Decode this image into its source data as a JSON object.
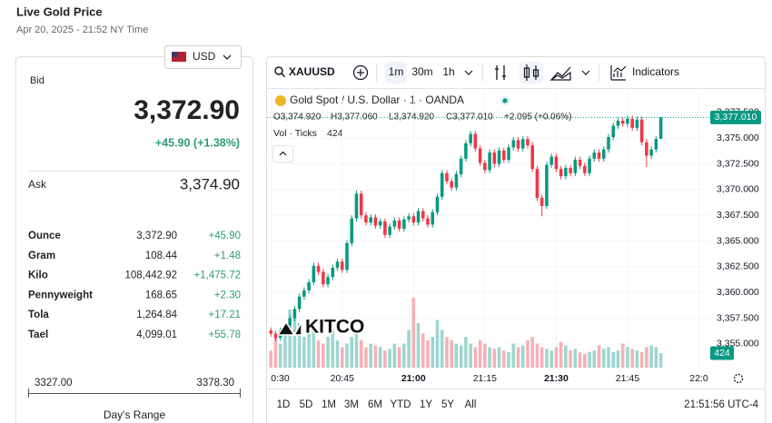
{
  "header": {
    "title": "Live Gold Price",
    "timestamp": "Apr 20, 2025 - 21:52 NY Time",
    "currency": "USD"
  },
  "price_card": {
    "bid_label": "Bid",
    "bid": "3,372.90",
    "change": "+45.90 (+1.38%)",
    "ask_label": "Ask",
    "ask": "3,374.90",
    "rows": [
      [
        "Ounce",
        "3,372.90",
        "+45.90"
      ],
      [
        "Gram",
        "108.44",
        "+1.48"
      ],
      [
        "Kilo",
        "108,442.92",
        "+1,475.72"
      ],
      [
        "Pennyweight",
        "168.65",
        "+2.30"
      ],
      [
        "Tola",
        "1,264.84",
        "+17.21"
      ],
      [
        "Tael",
        "4,099.01",
        "+55.78"
      ]
    ],
    "range_low": "3327.00",
    "range_high": "3378.30",
    "range_label": "Day's Range"
  },
  "toolbar": {
    "symbol": "XAUUSD",
    "intervals": [
      "1m",
      "30m",
      "1h"
    ],
    "indicators": "Indicators"
  },
  "chart_data": {
    "type": "candlestick",
    "title": "Gold Spot / U.S. Dollar · 1 · OANDA",
    "ohlc_legend": [
      "O3,374.920",
      "H3,377.060",
      "L3,374.920",
      "C3,377.010",
      "+2.095 (+0.06%)"
    ],
    "volume_title": "Vol · Ticks",
    "volume_label": "424",
    "close_label": "3,377.010",
    "watermark": "KITCO",
    "up_color": "#089981",
    "down_color": "#f23645",
    "volume_up_color": "#9dd6ce",
    "volume_down_color": "#f7b0b6",
    "xlim": [
      -1,
      92.2
    ],
    "xticks": [
      {
        "value": 0,
        "label": "0:30"
      },
      {
        "value": 15,
        "label": "20:45"
      },
      {
        "value": 30,
        "label": "21:00"
      },
      {
        "value": 45,
        "label": "21:15"
      },
      {
        "value": 60,
        "label": "21:30"
      },
      {
        "value": 75,
        "label": "21:45"
      },
      {
        "value": 90,
        "label": "22:0"
      }
    ],
    "ylim": [
      3352.7,
      3379.6
    ],
    "yticks": [
      {
        "value": 3377.5,
        "label": "3,377.500"
      },
      {
        "value": 3375,
        "label": "3,375.000"
      },
      {
        "value": 3372.5,
        "label": "3,372.500"
      },
      {
        "value": 3370,
        "label": "3,370.000"
      },
      {
        "value": 3367.5,
        "label": "3,367.500"
      },
      {
        "value": 3365,
        "label": "3,365.000"
      },
      {
        "value": 3362.5,
        "label": "3,362.500"
      },
      {
        "value": 3360,
        "label": "3,360.000"
      },
      {
        "value": 3357.5,
        "label": "3,357.500"
      },
      {
        "value": 3355,
        "label": "3,355.000"
      }
    ],
    "volume_ylim": [
      0,
      3000
    ],
    "candles": [
      [
        3356.3,
        3356.6,
        3355.7,
        3356.0
      ],
      [
        3356.0,
        3356.3,
        3355.3,
        3355.6
      ],
      [
        3355.6,
        3356.6,
        3355.3,
        3356.3
      ],
      [
        3356.3,
        3357.1,
        3356.0,
        3356.8
      ],
      [
        3356.8,
        3357.8,
        3356.5,
        3357.5
      ],
      [
        3357.5,
        3358.7,
        3357.2,
        3358.4
      ],
      [
        3358.4,
        3359.9,
        3358.1,
        3359.6
      ],
      [
        3359.6,
        3360.5,
        3359.3,
        3360.2
      ],
      [
        3360.2,
        3361.3,
        3359.9,
        3361.0
      ],
      [
        3361.0,
        3362.9,
        3360.7,
        3362.6
      ],
      [
        3362.6,
        3362.9,
        3361.7,
        3362.0
      ],
      [
        3362.0,
        3362.3,
        3360.5,
        3360.8
      ],
      [
        3360.8,
        3361.8,
        3360.5,
        3361.5
      ],
      [
        3361.5,
        3362.7,
        3361.2,
        3362.4
      ],
      [
        3362.4,
        3363.3,
        3362.1,
        3363.0
      ],
      [
        3363.0,
        3363.3,
        3361.9,
        3362.2
      ],
      [
        3362.2,
        3365.1,
        3361.9,
        3364.8
      ],
      [
        3364.8,
        3367.5,
        3364.5,
        3367.2
      ],
      [
        3367.2,
        3369.9,
        3366.9,
        3369.6
      ],
      [
        3369.6,
        3369.9,
        3367.2,
        3367.5
      ],
      [
        3367.5,
        3367.8,
        3366.5,
        3366.8
      ],
      [
        3366.8,
        3367.6,
        3366.5,
        3367.3
      ],
      [
        3367.3,
        3367.6,
        3366.2,
        3366.5
      ],
      [
        3366.5,
        3367.2,
        3366.2,
        3366.9
      ],
      [
        3366.9,
        3367.2,
        3365.3,
        3365.6
      ],
      [
        3365.6,
        3366.7,
        3365.3,
        3366.4
      ],
      [
        3366.4,
        3367.3,
        3366.1,
        3367.0
      ],
      [
        3367.0,
        3367.3,
        3365.9,
        3366.2
      ],
      [
        3366.2,
        3367.4,
        3365.9,
        3367.1
      ],
      [
        3367.1,
        3367.7,
        3366.8,
        3367.4
      ],
      [
        3367.4,
        3367.7,
        3366.5,
        3366.8
      ],
      [
        3366.8,
        3368.2,
        3366.5,
        3367.9
      ],
      [
        3367.9,
        3368.2,
        3366.9,
        3367.2
      ],
      [
        3367.2,
        3367.5,
        3366.3,
        3366.6
      ],
      [
        3366.6,
        3368.1,
        3366.3,
        3367.8
      ],
      [
        3367.8,
        3369.6,
        3367.5,
        3369.3
      ],
      [
        3369.3,
        3371.9,
        3369.0,
        3371.6
      ],
      [
        3371.6,
        3371.9,
        3370.5,
        3370.8
      ],
      [
        3370.8,
        3371.1,
        3369.9,
        3370.2
      ],
      [
        3370.2,
        3371.8,
        3369.9,
        3371.5
      ],
      [
        3371.5,
        3373.3,
        3371.2,
        3373.0
      ],
      [
        3373.0,
        3374.8,
        3372.7,
        3374.5
      ],
      [
        3374.5,
        3375.7,
        3374.2,
        3375.4
      ],
      [
        3375.4,
        3375.7,
        3373.7,
        3374.0
      ],
      [
        3374.0,
        3374.3,
        3372.3,
        3372.6
      ],
      [
        3372.6,
        3372.9,
        3371.6,
        3371.9
      ],
      [
        3371.9,
        3373.9,
        3371.6,
        3373.6
      ],
      [
        3373.6,
        3373.9,
        3372.2,
        3372.5
      ],
      [
        3372.5,
        3374.1,
        3372.2,
        3373.8
      ],
      [
        3373.8,
        3374.1,
        3372.6,
        3372.9
      ],
      [
        3372.9,
        3374.4,
        3372.6,
        3374.1
      ],
      [
        3374.1,
        3375.1,
        3373.8,
        3374.8
      ],
      [
        3374.8,
        3375.1,
        3373.7,
        3374.0
      ],
      [
        3374.0,
        3375.2,
        3373.7,
        3374.9
      ],
      [
        3374.9,
        3375.2,
        3374.0,
        3374.3
      ],
      [
        3374.3,
        3374.6,
        3371.7,
        3372.0
      ],
      [
        3372.0,
        3372.3,
        3368.9,
        3369.2
      ],
      [
        3369.2,
        3369.5,
        3367.4,
        3368.4
      ],
      [
        3368.4,
        3372.7,
        3368.1,
        3372.4
      ],
      [
        3372.4,
        3373.5,
        3372.1,
        3373.2
      ],
      [
        3373.2,
        3373.5,
        3371.7,
        3372.0
      ],
      [
        3372.0,
        3372.3,
        3371.0,
        3371.3
      ],
      [
        3371.3,
        3372.4,
        3371.0,
        3372.1
      ],
      [
        3372.1,
        3372.4,
        3371.3,
        3371.6
      ],
      [
        3371.6,
        3373.2,
        3371.3,
        3372.9
      ],
      [
        3372.9,
        3373.2,
        3372.0,
        3372.3
      ],
      [
        3372.3,
        3372.6,
        3371.3,
        3371.6
      ],
      [
        3371.6,
        3373.3,
        3371.3,
        3373.0
      ],
      [
        3373.0,
        3373.9,
        3372.7,
        3373.6
      ],
      [
        3373.6,
        3373.9,
        3372.7,
        3373.0
      ],
      [
        3373.0,
        3374.2,
        3372.7,
        3373.9
      ],
      [
        3373.9,
        3375.4,
        3373.6,
        3375.1
      ],
      [
        3375.1,
        3376.5,
        3374.8,
        3376.2
      ],
      [
        3376.2,
        3377.0,
        3375.9,
        3376.7
      ],
      [
        3376.7,
        3377.0,
        3376.1,
        3376.4
      ],
      [
        3376.4,
        3377.2,
        3376.1,
        3376.9
      ],
      [
        3376.9,
        3377.2,
        3375.7,
        3376.0
      ],
      [
        3376.0,
        3377.1,
        3375.7,
        3376.8
      ],
      [
        3376.8,
        3377.1,
        3374.3,
        3374.6
      ],
      [
        3374.6,
        3374.9,
        3372.2,
        3373.3
      ],
      [
        3373.3,
        3374.2,
        3373.0,
        3373.9
      ],
      [
        3373.9,
        3375.2,
        3373.6,
        3374.92
      ],
      [
        3374.92,
        3377.06,
        3374.92,
        3377.01
      ]
    ],
    "volumes": [
      500,
      900,
      700,
      1100,
      1700,
      1500,
      1300,
      900,
      1000,
      1200,
      800,
      700,
      900,
      1100,
      800,
      600,
      700,
      900,
      1100,
      800,
      600,
      700,
      650,
      600,
      500,
      550,
      700,
      600,
      700,
      1100,
      2050,
      1300,
      1000,
      800,
      900,
      1400,
      1100,
      900,
      800,
      700,
      650,
      900,
      700,
      600,
      800,
      700,
      600,
      550,
      600,
      500,
      450,
      700,
      600,
      650,
      800,
      900,
      700,
      600,
      550,
      500,
      600,
      750,
      650,
      500,
      550,
      450,
      400,
      450,
      500,
      650,
      550,
      600,
      450,
      500,
      700,
      600,
      550,
      500,
      450,
      600,
      650,
      600,
      424
    ]
  },
  "ranges": [
    "1D",
    "5D",
    "1M",
    "3M",
    "6M",
    "YTD",
    "1Y",
    "5Y",
    "All"
  ],
  "clock": "21:51:56 UTC-4"
}
